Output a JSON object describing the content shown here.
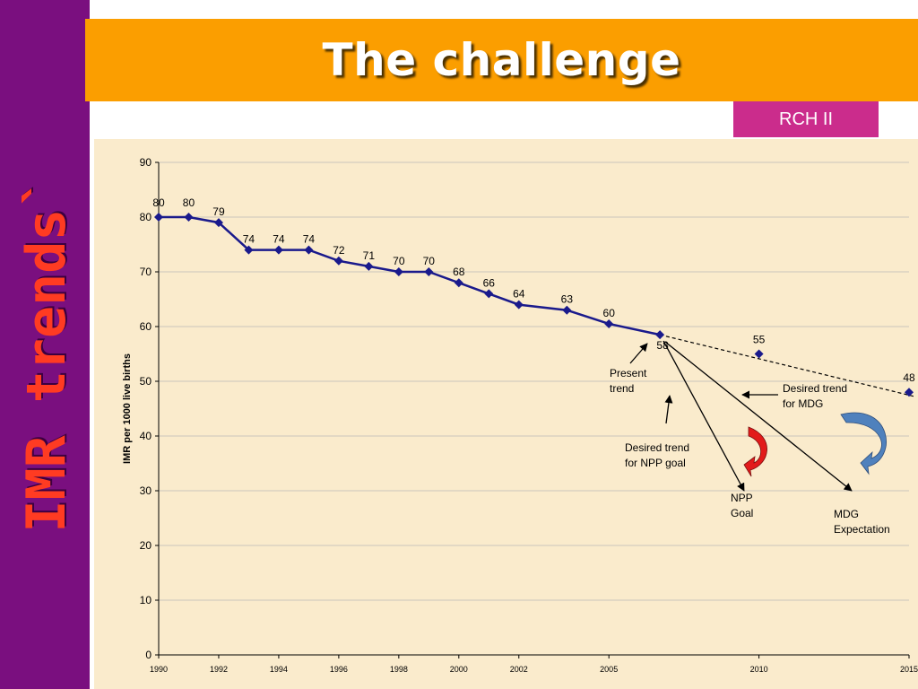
{
  "slide": {
    "title": "The challenge",
    "side_title": "IMR trends`",
    "tag": "RCH II"
  },
  "colors": {
    "sidebar": "#7a0f7f",
    "title_banner": "#fb9e00",
    "tag_badge": "#cb2c8c",
    "side_title_text": "#ff3b22",
    "plot_area": "#faebcc",
    "series_line": "#1a1a8c",
    "red_arrow": "#e21b1b",
    "blue_arrow": "#4f81bd"
  },
  "chart_data": {
    "type": "line",
    "ylabel": "IMR per 1000 live births",
    "xlabel": "",
    "ylim": [
      0,
      90
    ],
    "yticks": [
      0,
      10,
      20,
      30,
      40,
      50,
      60,
      70,
      80,
      90
    ],
    "xlim": [
      1990,
      2015
    ],
    "xticks": [
      "1990",
      "1992",
      "1994",
      "1996",
      "1998",
      "2000",
      "2002",
      "2005",
      "2010",
      "2015"
    ],
    "grid": true,
    "series": [
      {
        "points": [
          {
            "x": 1990,
            "y": 80,
            "label": "80"
          },
          {
            "x": 1991,
            "y": 80,
            "label": "80"
          },
          {
            "x": 1992,
            "y": 79,
            "label": "79"
          },
          {
            "x": 1993,
            "y": 74,
            "label": "74"
          },
          {
            "x": 1994,
            "y": 74,
            "label": "74"
          },
          {
            "x": 1995,
            "y": 74,
            "label": "74"
          },
          {
            "x": 1996,
            "y": 72,
            "label": "72"
          },
          {
            "x": 1997,
            "y": 71,
            "label": "71"
          },
          {
            "x": 1998,
            "y": 70,
            "label": "70"
          },
          {
            "x": 1999,
            "y": 70,
            "label": "70"
          },
          {
            "x": 2000,
            "y": 68,
            "label": "68"
          },
          {
            "x": 2001,
            "y": 66,
            "label": "66"
          },
          {
            "x": 2002,
            "y": 64,
            "label": "64"
          },
          {
            "x": 2003.6,
            "y": 63,
            "label": "63"
          },
          {
            "x": 2005,
            "y": 60.5,
            "label": "60"
          },
          {
            "x": 2006.7,
            "y": 58.5,
            "label": "58"
          }
        ]
      },
      {
        "style": "markers",
        "points": [
          {
            "x": 2010,
            "y": 55,
            "label": "55"
          },
          {
            "x": 2015,
            "y": 48,
            "label": "48"
          }
        ]
      }
    ],
    "annotations": {
      "present_trend": [
        "Present",
        "trend"
      ],
      "desired_mdg": [
        "Desired trend",
        "for MDG"
      ],
      "desired_npp": [
        "Desired trend",
        "for NPP goal"
      ],
      "npp_goal": [
        "NPP",
        "Goal"
      ],
      "mdg_expectation": [
        "MDG",
        "Expectation"
      ]
    }
  }
}
